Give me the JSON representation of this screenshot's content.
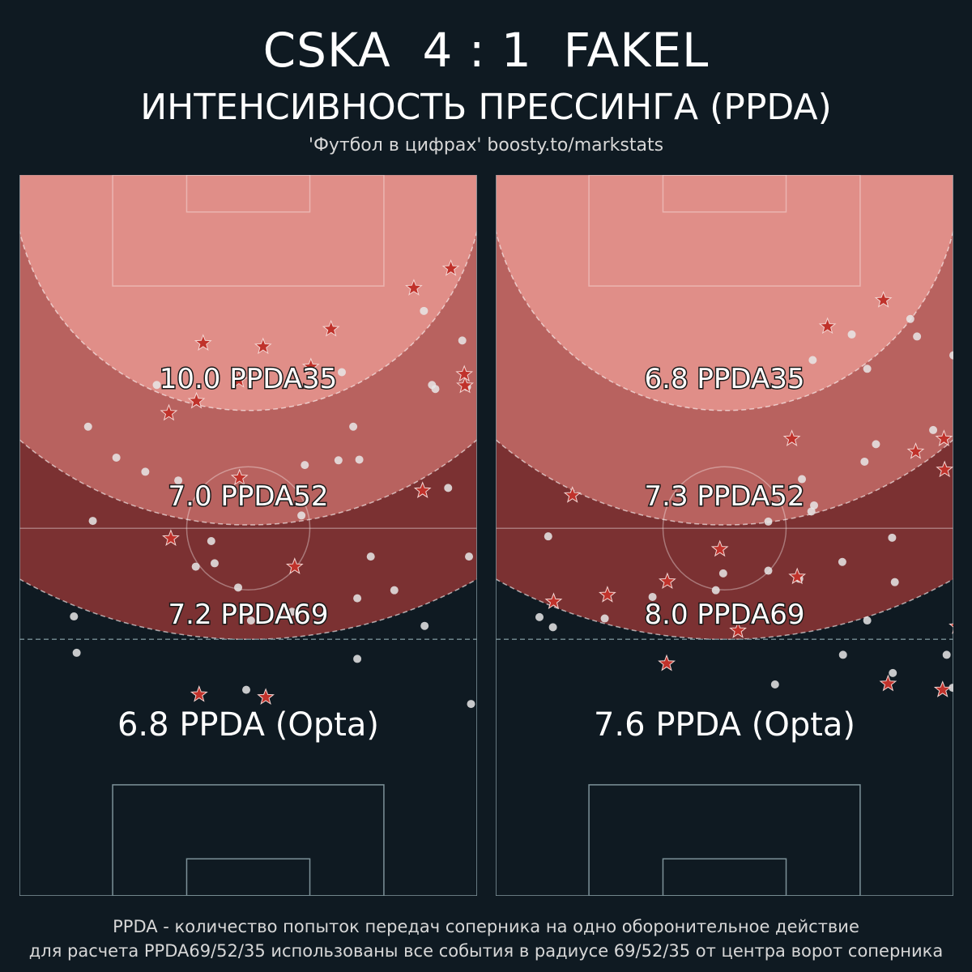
{
  "header": {
    "title": "CSKA  4 : 1  FAKEL",
    "subtitle": "ИНТЕНСИВНОСТЬ ПРЕССИНГА (PPDA)",
    "source": "'Футбол в цифрах' boosty.to/markstats"
  },
  "footer": {
    "line1": "PPDA - количество попыток передач соперника на одно оборонительное действие",
    "line2": "для расчета PPDA69/52/35 использованы все события в радиусе 69/52/35 от центра ворот соперника"
  },
  "colors": {
    "background": "#0f1a22",
    "zone35": "#e08e88",
    "zone52": "#b8625f",
    "zone69": "#7b3132",
    "pitch_line": "#7d9299",
    "dot": "#e8e8e8",
    "star": "#c0322b"
  },
  "panels": [
    {
      "team": "CSKA",
      "zones": [
        {
          "radius": 35,
          "label": "10.0 PPDA35"
        },
        {
          "radius": 52,
          "label": "7.0 PPDA52"
        },
        {
          "radius": 69,
          "label": "7.2 PPDA69"
        }
      ],
      "opta_label": "6.8 PPDA (Opta)",
      "dots": [
        [
          67.7,
          110.5
        ],
        [
          68.4,
          100.2
        ],
        [
          74.5,
          98.9
        ],
        [
          42.1,
          99.6
        ],
        [
          63.0,
          91.7
        ],
        [
          60.2,
          92.2
        ],
        [
          62.5,
          88.4
        ],
        [
          66.5,
          95.3
        ],
        [
          75.9,
          84.6
        ],
        [
          76.4,
          77.1
        ],
        [
          81.4,
          76.4
        ],
        [
          83.6,
          71.4
        ],
        [
          84.5,
          76.3
        ],
        [
          81.9,
          63.3
        ],
        [
          89.7,
          95.7
        ],
        [
          84.2,
          105.9
        ],
        [
          84.2,
          96.9
        ],
        [
          97.7,
          80.5
        ],
        [
          86.2,
          90.7
        ],
        [
          94.2,
          101.0
        ],
        [
          100.8,
          90.7
        ],
        [
          101.1,
          112.6
        ],
        [
          95.8,
          65.8
        ],
        [
          100.5,
          65.5
        ],
        [
          95.3,
          65.2
        ],
        [
          94.1,
          54.2
        ],
        [
          99.8,
          58.6
        ],
        [
          52.7,
          78.1
        ],
        [
          57.6,
          79.4
        ],
        [
          54.4,
          65.2
        ],
        [
          48.4,
          76.0
        ],
        [
          44.2,
          71.4
        ],
        [
          42.5,
          105.0
        ],
        [
          44.9,
          85.4
        ]
      ],
      "stars": [
        [
          60.7,
          111.2
        ],
        [
          56.5,
          88.0
        ],
        [
          56.2,
          69.4
        ],
        [
          60.3,
          67.6
        ],
        [
          61.3,
          59.0
        ],
        [
          70.6,
          111.6
        ],
        [
          70.2,
          59.5
        ],
        [
          74.9,
          92.2
        ],
        [
          77.3,
          62.5
        ],
        [
          66.6,
          64.5
        ],
        [
          66.7,
          79.0
        ],
        [
          93.9,
          80.9
        ],
        [
          80.3,
          56.9
        ],
        [
          100.2,
          65.3
        ],
        [
          100.1,
          63.6
        ],
        [
          103.6,
          62.4
        ],
        [
          98.1,
          47.9
        ],
        [
          92.6,
          50.8
        ]
      ]
    },
    {
      "team": "FAKEL",
      "zones": [
        {
          "radius": 35,
          "label": "6.8 PPDA35"
        },
        {
          "radius": 52,
          "label": "7.3 PPDA52"
        },
        {
          "radius": 69,
          "label": "8.0 PPDA69"
        }
      ],
      "opta_label": "7.6 PPDA (Opta)",
      "dots": [
        [
          40.5,
          99.7
        ],
        [
          41.8,
          87.7
        ],
        [
          42.5,
          101.2
        ],
        [
          50.2,
          99.9
        ],
        [
          57.3,
          96.7
        ],
        [
          66.7,
          95.7
        ],
        [
          67.8,
          93.2
        ],
        [
          74.5,
          85.5
        ],
        [
          74.5,
          92.8
        ],
        [
          79.5,
          79.2
        ],
        [
          80.9,
          84.0
        ],
        [
          79.1,
          94.0
        ],
        [
          81.3,
          83.1
        ],
        [
          75.5,
          109.7
        ],
        [
          85.6,
          105.3
        ],
        [
          85.5,
          91.5
        ],
        [
          89.2,
          100.2
        ],
        [
          88.8,
          76.6
        ],
        [
          90.5,
          74.0
        ],
        [
          81.1,
          61.5
        ],
        [
          86.9,
          57.7
        ],
        [
          89.2,
          62.8
        ],
        [
          95.6,
          55.4
        ],
        [
          96.6,
          58.0
        ],
        [
          102.0,
          60.8
        ],
        [
          92.9,
          87.9
        ],
        [
          93.3,
          94.5
        ],
        [
          99.0,
          71.9
        ],
        [
          103.8,
          62.7
        ],
        [
          101.0,
          105.3
        ],
        [
          104.4,
          100.3
        ],
        [
          103.2,
          109.2
        ],
        [
          101.9,
          110.2
        ],
        [
          93.0,
          108.0
        ]
      ],
      "stars": [
        [
          92.3,
          109.6
        ],
        [
          50.6,
          96.4
        ],
        [
          42.6,
          97.4
        ],
        [
          59.4,
          106.6
        ],
        [
          83.3,
          56.5
        ],
        [
          91.6,
          52.6
        ],
        [
          100.7,
          77.8
        ],
        [
          107.9,
          75.7
        ],
        [
          104.4,
          96.2
        ],
        [
          102.6,
          101.1
        ],
        [
          100.4,
          110.5
        ],
        [
          59.5,
          94.4
        ],
        [
          67.3,
          89.6
        ],
        [
          70.0,
          101.7
        ],
        [
          78.8,
          93.7
        ],
        [
          96.4,
          75.1
        ],
        [
          104.0,
          78.0
        ],
        [
          100.6,
          73.2
        ],
        [
          78.0,
          73.2
        ],
        [
          45.4,
          81.6
        ]
      ]
    }
  ]
}
